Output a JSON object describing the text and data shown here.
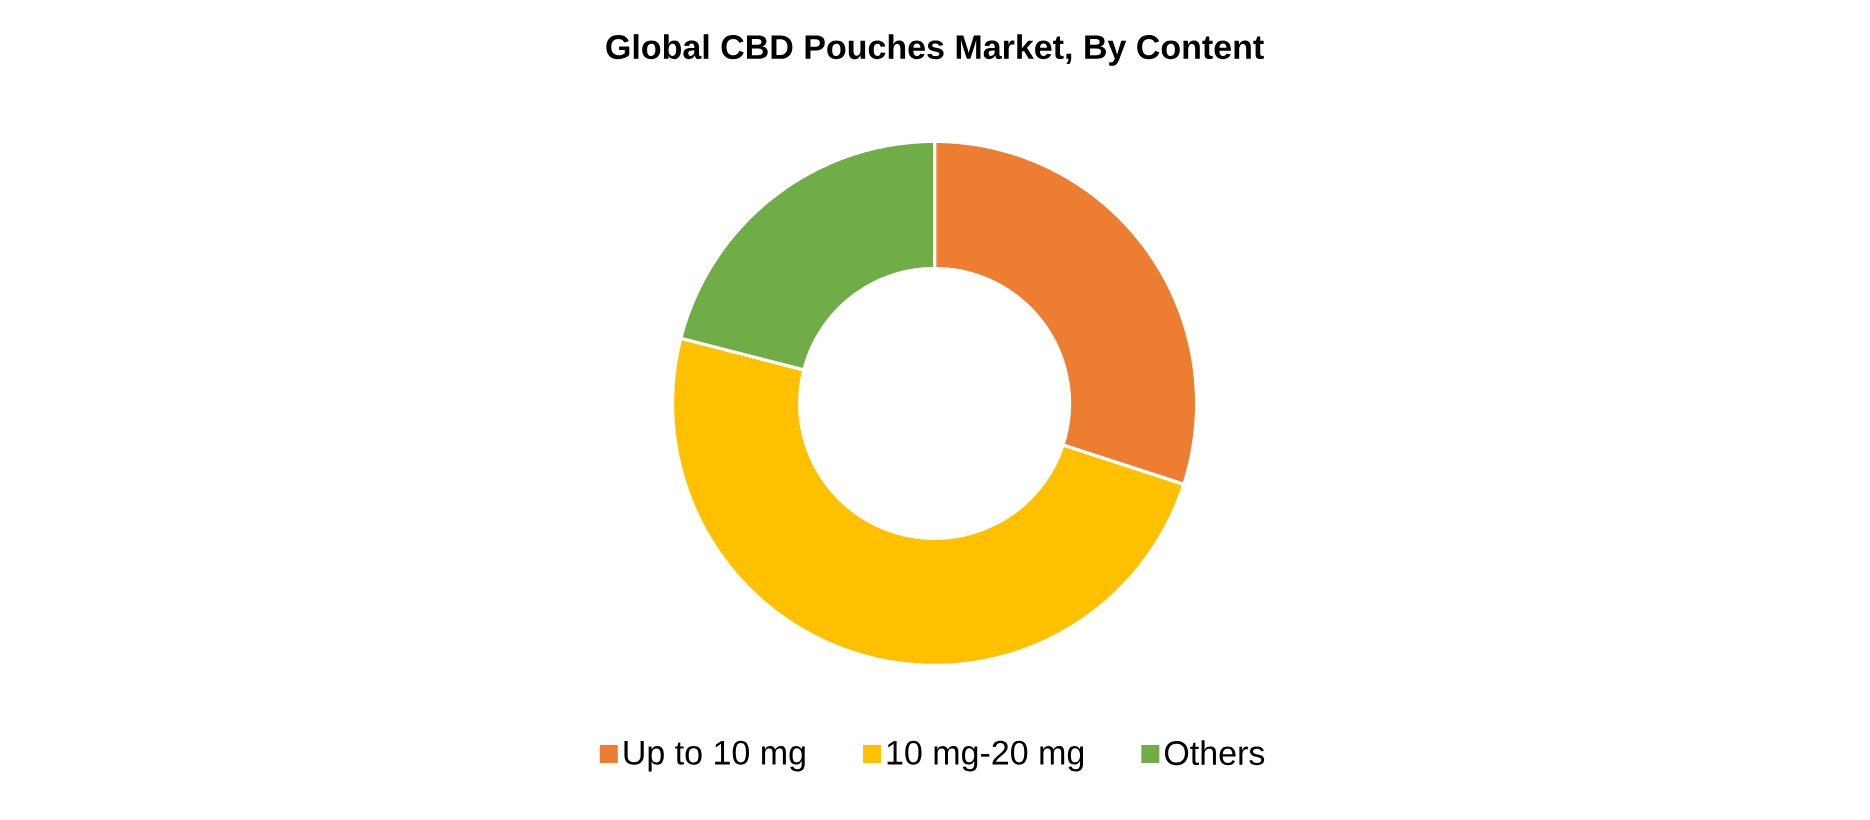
{
  "chart_data": {
    "type": "donut",
    "title": "Global CBD Pouches Market, By Content",
    "categories": [
      "Up to 10 mg",
      "10 mg-20 mg",
      "Others"
    ],
    "values": [
      30,
      49,
      21
    ],
    "colors": [
      "#ed7d31",
      "#ffc000",
      "#70ad47"
    ],
    "legend": "bottom"
  }
}
